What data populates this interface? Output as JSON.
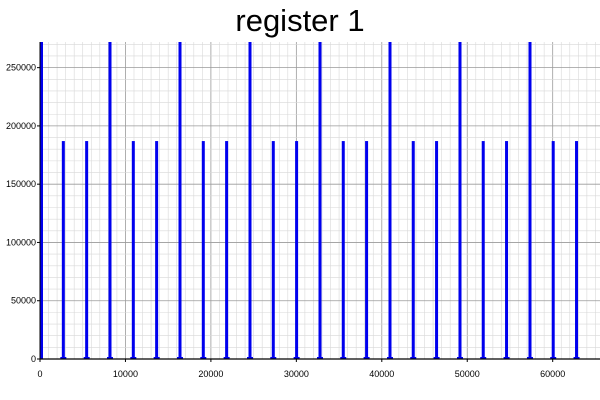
{
  "chart_data": {
    "type": "bar",
    "title": "register 1",
    "xlabel": "",
    "ylabel": "",
    "xlim": [
      0,
      65536
    ],
    "ylim": [
      0,
      272000
    ],
    "grid": true,
    "bar_color": "#0000ee",
    "x_ticks": [
      0,
      10000,
      20000,
      30000,
      40000,
      50000,
      60000
    ],
    "x_tick_labels": [
      "0",
      "10000",
      "20000",
      "30000",
      "40000",
      "50000",
      "60000"
    ],
    "y_ticks": [
      0,
      50000,
      100000,
      150000,
      200000,
      250000
    ],
    "y_tick_labels": [
      "0",
      "50000",
      "100000",
      "150000",
      "200000",
      "250000"
    ],
    "x": [
      0,
      2730,
      5460,
      8192,
      10920,
      13650,
      16384,
      19110,
      21840,
      24576,
      27300,
      30030,
      32768,
      35490,
      38220,
      40960,
      43680,
      46410,
      49152,
      51870,
      54600,
      57344,
      60060,
      62790
    ],
    "values": [
      272000,
      187000,
      187000,
      272000,
      187000,
      187000,
      272000,
      187000,
      187000,
      272000,
      187000,
      187000,
      272000,
      187000,
      187000,
      272000,
      187000,
      187000,
      272000,
      187000,
      187000,
      272000,
      187000,
      187000
    ]
  }
}
